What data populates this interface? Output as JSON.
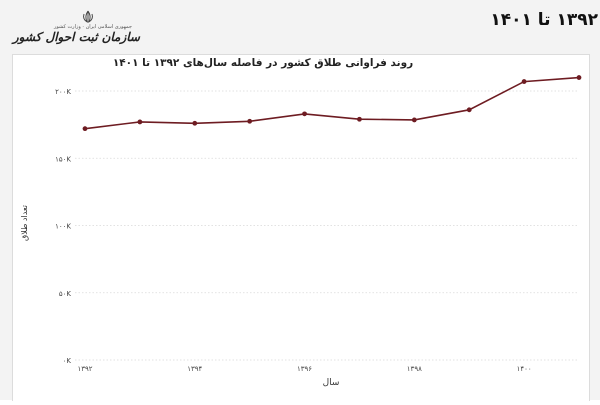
{
  "header": {
    "title": "روند فراوانی طلاق کشور در فاصله سال‌های ۱۳۹۲ تا ۱۴۰۱",
    "visible_title": "۱۳۹۲ تا ۱۴۰۱"
  },
  "logo": {
    "emblem": "iran-emblem-icon",
    "top_line": "جمهوری اسلامی ایران",
    "mid_line": "وزارت کشور",
    "name": "سازمان ثبت احوال کشور"
  },
  "chart_data": {
    "type": "line",
    "title": "روند فراوانی طلاق کشور در فاصله سال‌های ۱۳۹۲ تا ۱۴۰۱",
    "xlabel": "سال",
    "ylabel": "تعداد طلاق",
    "x": [
      1392,
      1393,
      1394,
      1395,
      1396,
      1397,
      1398,
      1399,
      1400,
      1401
    ],
    "x_tick_values": [
      1392,
      1394,
      1396,
      1398,
      1400
    ],
    "x_tick_labels": [
      "۱۳۹۲",
      "۱۳۹۴",
      "۱۳۹۶",
      "۱۳۹۸",
      "۱۴۰۰"
    ],
    "y_tick_values": [
      0,
      50000,
      100000,
      150000,
      200000
    ],
    "y_tick_labels": [
      "۰K",
      "۵۰K",
      "۱۰۰K",
      "۱۵۰K",
      "۲۰۰K"
    ],
    "ylim": [
      0,
      200000
    ],
    "xlim": [
      1392,
      1401
    ],
    "series": [
      {
        "values": [
          172000,
          177000,
          176000,
          177500,
          183000,
          179000,
          178500,
          186000,
          207000,
          210000
        ]
      }
    ],
    "grid": true,
    "colors": {
      "line": "#6e1c22",
      "marker": "#6e1c22",
      "grid": "#d9d9d9"
    }
  }
}
